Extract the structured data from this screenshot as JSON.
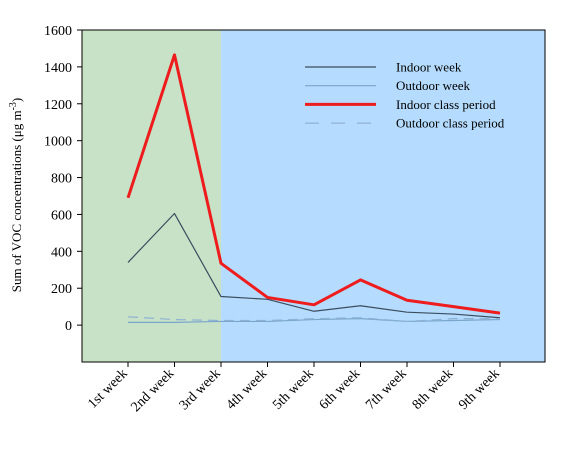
{
  "chart_data": {
    "type": "line",
    "title": "",
    "xlabel": "",
    "ylabel": "Sum of VOC concentrations (μg m",
    "ylabel_sup": "-3",
    "ylabel_close": ")",
    "ylim": [
      -200,
      1600
    ],
    "yticks": [
      0,
      200,
      400,
      600,
      800,
      1000,
      1200,
      1400,
      1600
    ],
    "categories": [
      "1st week",
      "2nd week",
      "3rd week",
      "4th week",
      "5th week",
      "6th week",
      "7th week",
      "8th week",
      "9th week"
    ],
    "shaded_regions": [
      {
        "from": "start",
        "to": "3rd week",
        "color": "#c8e2c8"
      },
      {
        "from": "3rd week",
        "to": "end",
        "color": "#b5dcff"
      }
    ],
    "legend_position": "top-right",
    "series": [
      {
        "name": "Indoor week",
        "color": "#3a4d5e",
        "width": 1.2,
        "dash": "none",
        "values": [
          340,
          605,
          155,
          140,
          75,
          105,
          70,
          60,
          40
        ]
      },
      {
        "name": "Outdoor week",
        "color": "#7aa6cc",
        "width": 1.2,
        "dash": "none",
        "values": [
          15,
          15,
          20,
          20,
          30,
          35,
          20,
          25,
          30
        ]
      },
      {
        "name": "Indoor class period",
        "color": "#ee1c1c",
        "width": 3,
        "dash": "none",
        "values": [
          690,
          1465,
          335,
          150,
          110,
          245,
          135,
          100,
          65
        ]
      },
      {
        "name": "Outdoor class period",
        "color": "#8fb2d4",
        "width": 1.2,
        "dash": "10,6",
        "values": [
          45,
          30,
          25,
          25,
          35,
          40,
          20,
          35,
          35
        ]
      }
    ]
  }
}
